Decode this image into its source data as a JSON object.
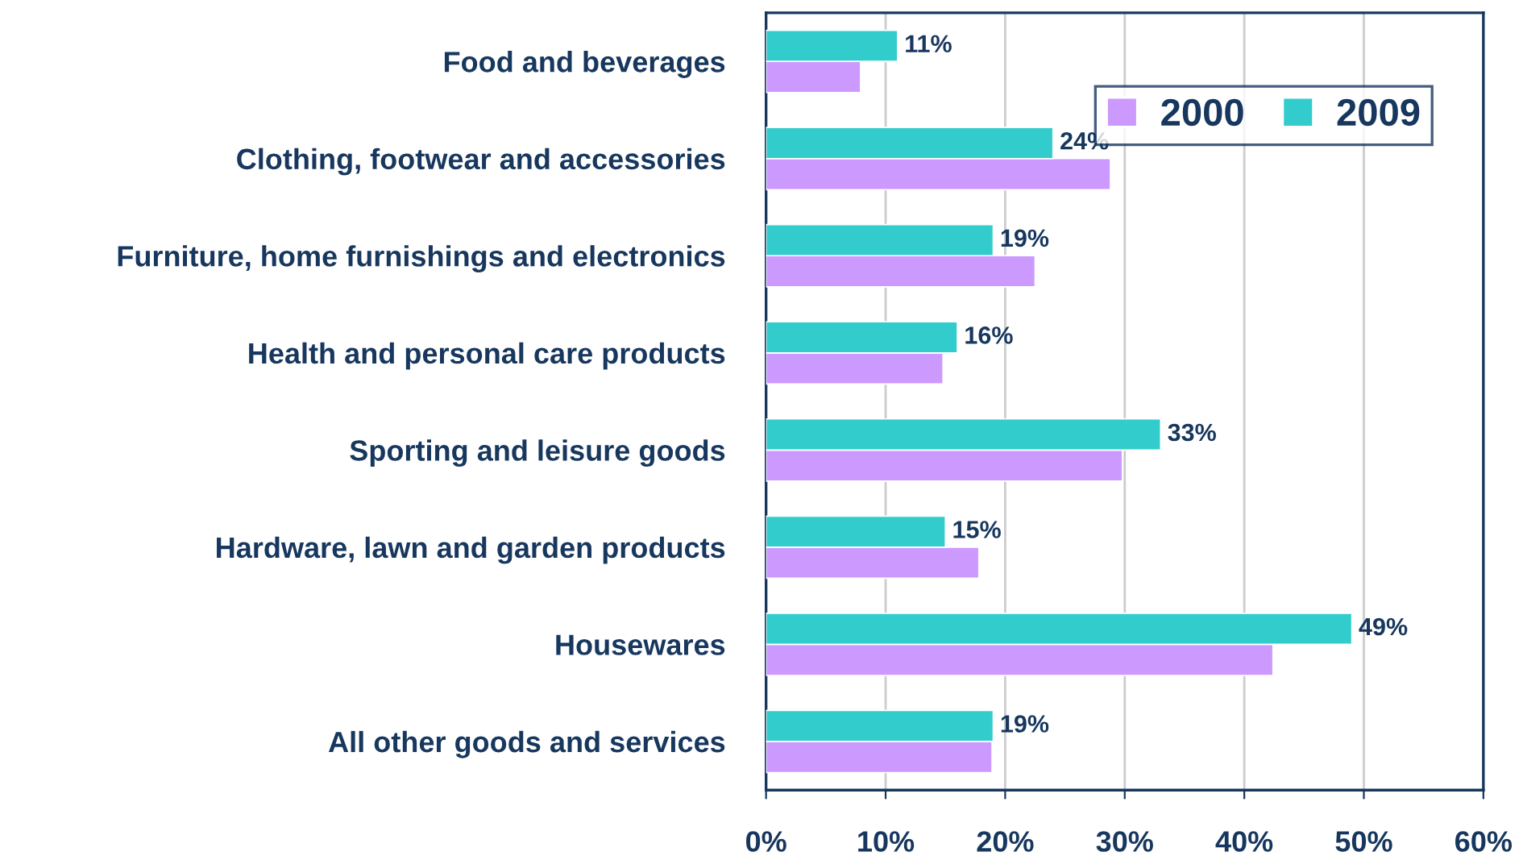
{
  "chart_data": {
    "type": "bar",
    "orientation": "horizontal",
    "categories": [
      "Food and beverages",
      "Clothing, footwear and accessories",
      "Furniture, home furnishings and electronics",
      "Health and personal care products",
      "Sporting and leisure goods",
      "Hardware, lawn and garden products",
      "Housewares",
      "All other goods and services"
    ],
    "series": [
      {
        "name": "2000",
        "color": "#cc99ff",
        "values": [
          7.9,
          28.8,
          22.5,
          14.8,
          29.8,
          17.8,
          42.4,
          18.9
        ]
      },
      {
        "name": "2009",
        "color": "#33cccc",
        "values": [
          11,
          24,
          19,
          16,
          33,
          15,
          49,
          19
        ],
        "value_labels": [
          "11%",
          "24%",
          "19%",
          "16%",
          "33%",
          "15%",
          "49%",
          "19%"
        ]
      }
    ],
    "xlim": [
      0,
      60
    ],
    "xticks": [
      {
        "value": 0,
        "label": "0%"
      },
      {
        "value": 10,
        "label": "10%"
      },
      {
        "value": 20,
        "label": "20%"
      },
      {
        "value": 30,
        "label": "30%"
      },
      {
        "value": 40,
        "label": "40%"
      },
      {
        "value": 50,
        "label": "50%"
      },
      {
        "value": 60,
        "label": "60%"
      }
    ],
    "grid": "x",
    "legend": "top right"
  }
}
